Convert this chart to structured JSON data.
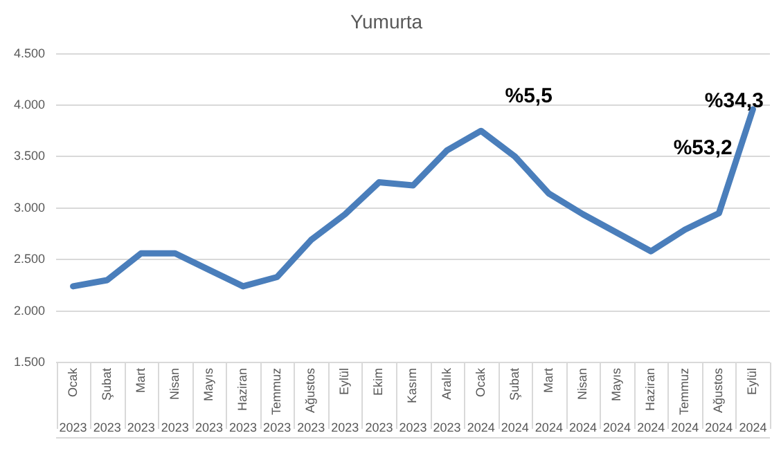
{
  "chart_data": {
    "type": "line",
    "title": "Yumurta",
    "categories": [
      "Ocak 2023",
      "Şubat 2023",
      "Mart 2023",
      "Nisan 2023",
      "Mayıs 2023",
      "Haziran 2023",
      "Temmuz 2023",
      "Ağustos 2023",
      "Eylül 2023",
      "Ekim 2023",
      "Kasım 2023",
      "Aralık 2023",
      "Ocak 2024",
      "Şubat 2024",
      "Mart 2024",
      "Nisan 2024",
      "Mayıs 2024",
      "Haziran 2024",
      "Temmuz 2024",
      "Ağustos 2024",
      "Eylül 2024"
    ],
    "series": [
      {
        "color": "#4a7ebb",
        "values": [
          2240,
          2300,
          2560,
          2560,
          2400,
          2240,
          2330,
          2690,
          2940,
          3250,
          3220,
          3560,
          3750,
          3500,
          3140,
          2940,
          2760,
          2580,
          2790,
          2950,
          3960
        ]
      }
    ],
    "ylim": [
      1500,
      4500
    ],
    "yticks": [
      {
        "value": 1500,
        "label": "1.500"
      },
      {
        "value": 2000,
        "label": "2.000"
      },
      {
        "value": 2500,
        "label": "2.500"
      },
      {
        "value": 3000,
        "label": "3.000"
      },
      {
        "value": 3500,
        "label": "3.500"
      },
      {
        "value": 4000,
        "label": "4.000"
      },
      {
        "value": 4500,
        "label": "4.500"
      }
    ],
    "grid": "y",
    "legend": false,
    "marker": "none",
    "line_style": "solid",
    "annotations": [
      "%5,5",
      "%53,2",
      "%34,3"
    ]
  }
}
